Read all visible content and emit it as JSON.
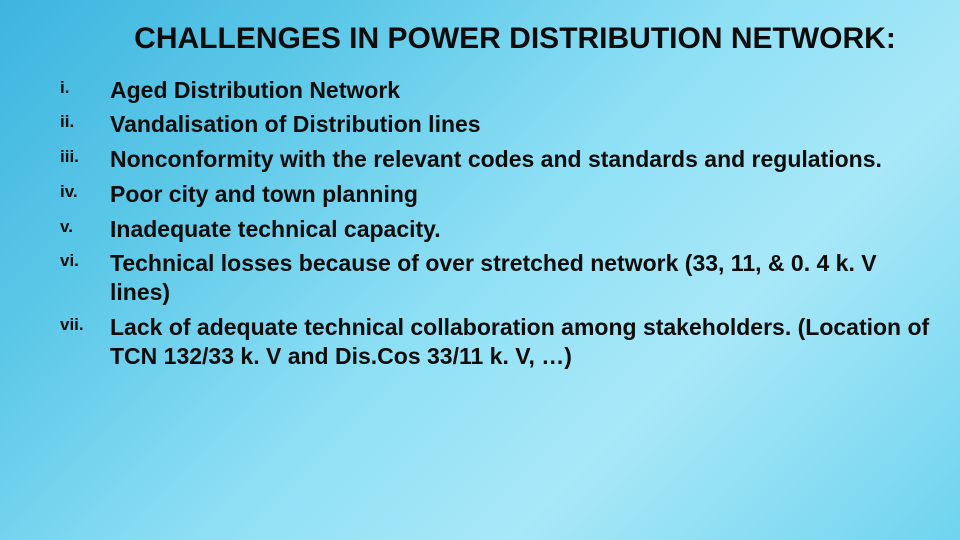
{
  "title_fontsize": 30,
  "item_fontsize": 23,
  "marker_fontsize": 17,
  "text_color": "#0d0d0d",
  "background_gradient": [
    "#3db5e0",
    "#5ec9e8",
    "#8fe0f5",
    "#a8e8f8",
    "#6fd4ef"
  ],
  "title": "CHALLENGES IN POWER DISTRIBUTION NETWORK:",
  "items": [
    {
      "marker": "i.",
      "text": "Aged Distribution Network"
    },
    {
      "marker": "ii.",
      "text": "Vandalisation of Distribution lines"
    },
    {
      "marker": "iii.",
      "text": "Nonconformity with the relevant codes and standards and regulations."
    },
    {
      "marker": "iv.",
      "text": "Poor city and town planning"
    },
    {
      "marker": "v.",
      "text": "Inadequate technical capacity."
    },
    {
      "marker": "vi.",
      "text": "Technical losses because of over stretched network (33, 11, & 0. 4 k. V lines)"
    },
    {
      "marker": "vii.",
      "text": "Lack of adequate technical collaboration among stakeholders. (Location of TCN 132/33 k. V and Dis.Cos 33/11 k. V, …)"
    }
  ]
}
